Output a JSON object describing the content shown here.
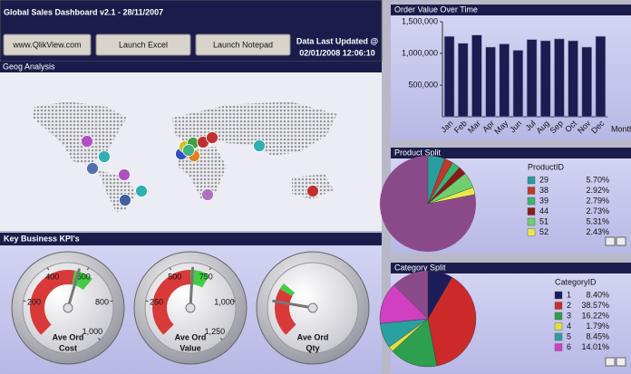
{
  "header": {
    "title": "Global Sales Dashboard v2.1 - 28/11/2007",
    "buttons": [
      "www.QlikView.com",
      "Launch Excel",
      "Launch Notepad"
    ],
    "updated_label": "Data Last Updated @",
    "updated_value": "02/01/2008 12:06:10"
  },
  "geo_panel": {
    "title": "Geog Analysis"
  },
  "kpi_panel": {
    "title": "Key Business KPI's",
    "gauges": [
      {
        "label_lines": [
          "Ave Ord",
          "Cost"
        ],
        "range": [
          0,
          1000
        ],
        "ticks": [
          200,
          400,
          600,
          800,
          {
            "value": 1000,
            "label": "1,000"
          }
        ],
        "value": 560
      },
      {
        "label_lines": [
          "Ave Ord",
          "Value"
        ],
        "range": [
          0,
          1250
        ],
        "ticks": [
          250,
          500,
          750,
          {
            "value": 1000,
            "label": "1,000"
          },
          {
            "value": 1250,
            "label": "1,250"
          }
        ],
        "value": 640
      },
      {
        "label_lines": [
          "Ave Ord",
          "Qty"
        ]
      }
    ]
  },
  "chart_data": [
    {
      "type": "bar",
      "title": "Order Value Over Time",
      "x_label": "Month",
      "categories": [
        "Jan",
        "Feb",
        "Mar",
        "Apr",
        "May",
        "Jun",
        "Jul",
        "Aug",
        "Sep",
        "Oct",
        "Nov",
        "Dec"
      ],
      "values": [
        1270000,
        1160000,
        1290000,
        1100000,
        1150000,
        1050000,
        1220000,
        1200000,
        1230000,
        1200000,
        1100000,
        1270000
      ],
      "color": "#1c1c50",
      "ylim": [
        0,
        1500000
      ],
      "yticks": [
        {
          "value": 500000,
          "label": "500,000"
        },
        {
          "value": 1000000,
          "label": "1,000,000"
        },
        {
          "value": 1500000,
          "label": "1,500,000"
        }
      ]
    },
    {
      "type": "pie",
      "title": "Product Split",
      "legend_title": "ProductID",
      "categories": [
        "29",
        "38",
        "39",
        "44",
        "51",
        "52"
      ],
      "values": [
        5.7,
        2.92,
        2.79,
        2.73,
        5.31,
        2.43
      ],
      "value_labels": [
        "5.70%",
        "2.92%",
        "2.79%",
        "2.73%",
        "5.31%",
        "2.43%"
      ],
      "colors": [
        "#2a9d9d",
        "#c0392b",
        "#3cb371",
        "#8b1a1a",
        "#6fcf6f",
        "#e8e84a"
      ]
    },
    {
      "type": "pie",
      "title": "Category Split",
      "legend_title": "CategoryID",
      "categories": [
        "1",
        "2",
        "3",
        "4",
        "5",
        "6"
      ],
      "values": [
        8.4,
        38.57,
        16.22,
        1.79,
        8.45,
        14.01
      ],
      "value_labels": [
        "8.40%",
        "38.57%",
        "16.22%",
        "1.79%",
        "8.45%",
        "14.01%"
      ],
      "colors": [
        "#1c1c5a",
        "#cc2a2a",
        "#2e9e4f",
        "#e0e040",
        "#2aa0a0",
        "#d040c0"
      ]
    }
  ]
}
